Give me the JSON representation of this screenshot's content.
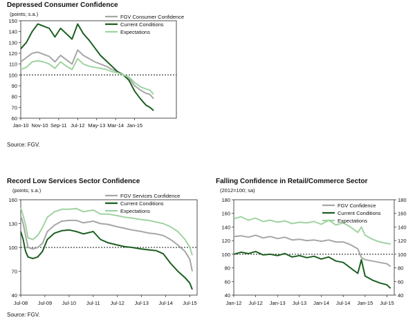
{
  "charts": [
    {
      "title": "Depressed Consumer Confidence",
      "unit": "(points; s.a.)",
      "source": "Source: FGV.",
      "type": "line",
      "ylim": [
        60,
        150
      ],
      "yticks": [
        "60",
        "70",
        "80",
        "90",
        "100",
        "110",
        "120",
        "130",
        "140",
        "150"
      ],
      "xticks": [
        "Jan-10",
        "Nov-10",
        "Sep-11",
        "Jul-12",
        "May-13",
        "Mar-14",
        "Jan-15"
      ],
      "xlim": [
        0,
        82
      ],
      "xtick_pos": [
        0,
        10,
        20,
        30,
        40,
        50,
        60
      ],
      "ref_line": 100,
      "right_axis": false,
      "series": [
        {
          "name": "FGV Consumer Confidence",
          "color": "#a6a6a6",
          "x": [
            0,
            3,
            6,
            9,
            12,
            15,
            18,
            21,
            24,
            27,
            30,
            33,
            36,
            39,
            42,
            45,
            48,
            51,
            54,
            57,
            60,
            63,
            66,
            68,
            70
          ],
          "y": [
            112,
            116,
            120,
            121,
            119,
            117,
            112,
            118,
            114,
            110,
            123,
            118,
            115,
            112,
            110,
            108,
            105,
            103,
            100,
            97,
            90,
            86,
            83,
            82,
            78
          ]
        },
        {
          "name": "Current Conditions",
          "color": "#1a5e1f",
          "x": [
            0,
            3,
            6,
            9,
            12,
            15,
            18,
            21,
            24,
            27,
            30,
            33,
            36,
            39,
            42,
            45,
            48,
            51,
            54,
            57,
            60,
            63,
            66,
            68,
            70
          ],
          "y": [
            124,
            130,
            140,
            147,
            145,
            143,
            135,
            143,
            138,
            133,
            147,
            138,
            132,
            125,
            118,
            113,
            108,
            103,
            100,
            95,
            85,
            78,
            72,
            70,
            67
          ]
        },
        {
          "name": "Expectations",
          "color": "#9fd3a1",
          "x": [
            0,
            3,
            6,
            9,
            12,
            15,
            18,
            21,
            24,
            27,
            30,
            33,
            36,
            39,
            42,
            45,
            48,
            51,
            54,
            57,
            60,
            63,
            66,
            68,
            70
          ],
          "y": [
            105,
            107,
            112,
            113,
            112,
            110,
            106,
            112,
            108,
            105,
            115,
            110,
            108,
            107,
            106,
            105,
            103,
            102,
            100,
            98,
            93,
            89,
            87,
            86,
            82
          ]
        }
      ]
    },
    {
      "title": "Record Low Services Sector Confidence",
      "unit": "(points; s.a.)",
      "source": "Source: FGV.",
      "type": "line",
      "ylim": [
        40,
        160
      ],
      "yticks": [
        "40",
        "70",
        "100",
        "130",
        "160"
      ],
      "xticks": [
        "Jul-08",
        "Jul-09",
        "Jul-10",
        "Jul-11",
        "Jul-12",
        "Jul-13",
        "Jul-14",
        "Jul-15"
      ],
      "xlim": [
        0,
        7.3
      ],
      "xtick_pos": [
        0,
        1,
        2,
        3,
        4,
        5,
        6,
        7
      ],
      "ref_line": 100,
      "right_axis": false,
      "series": [
        {
          "name": "FGV Services Confidence",
          "color": "#a6a6a6",
          "x": [
            0,
            0.1,
            0.2,
            0.3,
            0.5,
            0.7,
            0.9,
            1.1,
            1.4,
            1.7,
            2.0,
            2.3,
            2.6,
            3.0,
            3.3,
            3.6,
            4.0,
            4.3,
            4.6,
            5.0,
            5.3,
            5.6,
            5.9,
            6.2,
            6.5,
            6.8,
            7.0,
            7.1
          ],
          "y": [
            140,
            130,
            115,
            100,
            98,
            100,
            105,
            120,
            128,
            133,
            134,
            134,
            131,
            133,
            130,
            129,
            126,
            124,
            122,
            120,
            118,
            117,
            115,
            110,
            103,
            95,
            85,
            70
          ]
        },
        {
          "name": "Current Conditions",
          "color": "#1a5e1f",
          "x": [
            0,
            0.1,
            0.2,
            0.3,
            0.5,
            0.7,
            0.9,
            1.1,
            1.4,
            1.7,
            2.0,
            2.3,
            2.6,
            3.0,
            3.3,
            3.6,
            4.0,
            4.3,
            4.6,
            5.0,
            5.3,
            5.6,
            5.9,
            6.2,
            6.5,
            6.8,
            7.0,
            7.1
          ],
          "y": [
            120,
            110,
            95,
            88,
            86,
            88,
            95,
            110,
            118,
            121,
            122,
            120,
            117,
            120,
            110,
            106,
            103,
            101,
            100,
            98,
            97,
            96,
            92,
            80,
            70,
            62,
            55,
            47
          ]
        },
        {
          "name": "Expectations",
          "color": "#9fd3a1",
          "x": [
            0,
            0.1,
            0.2,
            0.3,
            0.5,
            0.7,
            0.9,
            1.1,
            1.4,
            1.7,
            2.0,
            2.3,
            2.6,
            3.0,
            3.3,
            3.6,
            4.0,
            4.3,
            4.6,
            5.0,
            5.3,
            5.6,
            5.9,
            6.2,
            6.5,
            6.8,
            7.0,
            7.1
          ],
          "y": [
            150,
            140,
            128,
            112,
            110,
            115,
            125,
            138,
            145,
            148,
            148,
            149,
            145,
            147,
            142,
            142,
            140,
            138,
            137,
            135,
            134,
            132,
            130,
            126,
            120,
            110,
            100,
            90
          ]
        }
      ]
    },
    {
      "title": "Falling Confidence in Retail/Commerce Sector",
      "unit": "(2012=100; sa)",
      "source": "",
      "type": "line",
      "ylim": [
        40,
        180
      ],
      "yticks": [
        "40",
        "60",
        "80",
        "100",
        "120",
        "140",
        "160",
        "180"
      ],
      "xticks": [
        "Jan-12",
        "Jul-12",
        "Jan-13",
        "Jul-13",
        "Jan-14",
        "Jul-14",
        "Jan-15",
        "Jul-15"
      ],
      "xlim": [
        0,
        44
      ],
      "xtick_pos": [
        0,
        6,
        12,
        18,
        24,
        30,
        36,
        42
      ],
      "ref_line": 100,
      "right_axis": true,
      "series": [
        {
          "name": "FGV Confidence",
          "color": "#a6a6a6",
          "x": [
            0,
            2,
            4,
            6,
            8,
            10,
            12,
            14,
            16,
            18,
            20,
            22,
            24,
            26,
            28,
            30,
            32,
            34,
            35,
            36,
            38,
            40,
            42,
            43
          ],
          "y": [
            126,
            127,
            125,
            128,
            124,
            126,
            123,
            125,
            121,
            122,
            120,
            121,
            119,
            121,
            118,
            118,
            114,
            108,
            95,
            92,
            90,
            88,
            86,
            82
          ]
        },
        {
          "name": "Current Conditions",
          "color": "#1a5e1f",
          "x": [
            0,
            2,
            4,
            6,
            8,
            10,
            12,
            14,
            16,
            18,
            20,
            22,
            24,
            26,
            28,
            30,
            32,
            34,
            35,
            36,
            38,
            40,
            42,
            43
          ],
          "y": [
            100,
            103,
            101,
            104,
            99,
            100,
            98,
            101,
            96,
            98,
            95,
            97,
            93,
            96,
            90,
            88,
            80,
            72,
            92,
            68,
            62,
            58,
            55,
            50
          ]
        },
        {
          "name": "Expectations",
          "color": "#9fd3a1",
          "x": [
            0,
            2,
            4,
            6,
            8,
            10,
            12,
            14,
            16,
            18,
            20,
            22,
            24,
            26,
            28,
            30,
            32,
            34,
            35,
            36,
            38,
            40,
            42,
            43
          ],
          "y": [
            152,
            155,
            150,
            153,
            148,
            150,
            147,
            149,
            145,
            147,
            146,
            148,
            144,
            150,
            143,
            146,
            140,
            132,
            140,
            128,
            122,
            118,
            116,
            115
          ]
        }
      ]
    }
  ]
}
